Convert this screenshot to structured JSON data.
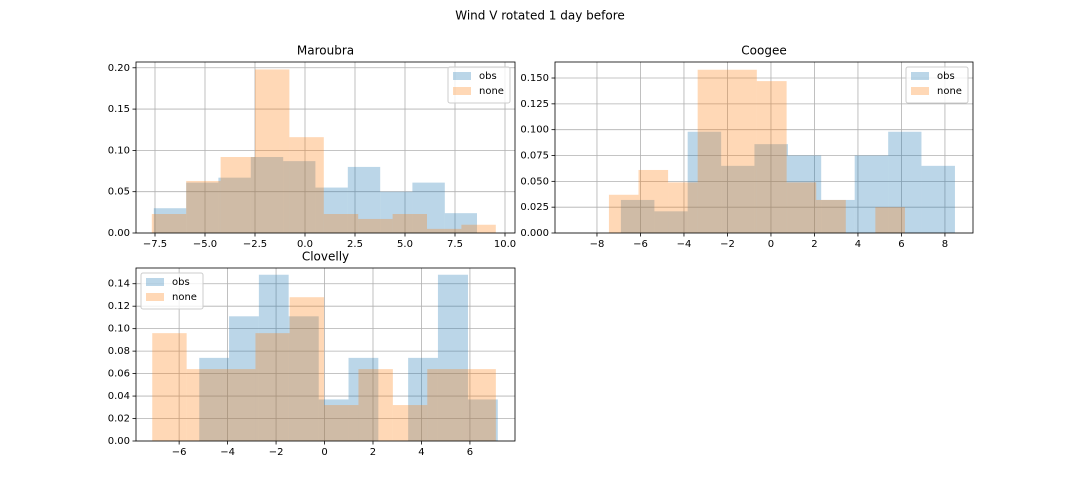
{
  "title": "Wind V rotated 1 day before",
  "chart_data": [
    {
      "type": "histogram",
      "title": "Maroubra",
      "grid": true,
      "legend": "upper right",
      "xlim": [
        -8.45,
        10.5
      ],
      "ylim": [
        0,
        0.207
      ],
      "xticks": [
        {
          "value": -7.5,
          "label": "−7.5"
        },
        {
          "value": -5,
          "label": "−5.0"
        },
        {
          "value": -2.5,
          "label": "−2.5"
        },
        {
          "value": 0,
          "label": "0.0"
        },
        {
          "value": 2.5,
          "label": "2.5"
        },
        {
          "value": 5,
          "label": "5.0"
        },
        {
          "value": 7.5,
          "label": "7.5"
        },
        {
          "value": 10,
          "label": "10.0"
        }
      ],
      "yticks": [
        {
          "value": 0,
          "label": "0.00"
        },
        {
          "value": 0.05,
          "label": "0.05"
        },
        {
          "value": 0.1,
          "label": "0.10"
        },
        {
          "value": 0.15,
          "label": "0.15"
        },
        {
          "value": 0.2,
          "label": "0.20"
        }
      ],
      "series": [
        {
          "name": "obs",
          "color": "#1f77b4",
          "bins": [
            -7.56,
            -5.94,
            -4.33,
            -2.71,
            -1.09,
            0.52,
            2.14,
            3.76,
            5.37,
            6.99,
            8.6
          ],
          "values": [
            0.03,
            0.061,
            0.067,
            0.092,
            0.087,
            0.055,
            0.08,
            0.05,
            0.061,
            0.024
          ]
        },
        {
          "name": "none",
          "color": "#ff7f0e",
          "bins": [
            -7.66,
            -5.94,
            -4.22,
            -2.5,
            -0.78,
            0.94,
            2.66,
            4.38,
            6.1,
            7.82,
            9.54
          ],
          "values": [
            0.023,
            0.063,
            0.092,
            0.198,
            0.116,
            0.023,
            0.017,
            0.023,
            0.005,
            0.01
          ]
        }
      ]
    },
    {
      "type": "histogram",
      "title": "Coogee",
      "grid": true,
      "legend": "upper right",
      "xlim": [
        -9.93,
        9.29
      ],
      "ylim": [
        0,
        0.1655
      ],
      "xticks": [
        {
          "value": -8,
          "label": "−8"
        },
        {
          "value": -6,
          "label": "−6"
        },
        {
          "value": -4,
          "label": "−4"
        },
        {
          "value": -2,
          "label": "−2"
        },
        0,
        2,
        4,
        6,
        8
      ],
      "yticks": [
        {
          "value": 0,
          "label": "0.000"
        },
        {
          "value": 0.025,
          "label": "0.025"
        },
        {
          "value": 0.05,
          "label": "0.050"
        },
        {
          "value": 0.075,
          "label": "0.075"
        },
        {
          "value": 0.1,
          "label": "0.100"
        },
        {
          "value": 0.125,
          "label": "0.125"
        },
        {
          "value": 0.15,
          "label": "0.150"
        }
      ],
      "series": [
        {
          "name": "obs",
          "color": "#1f77b4",
          "bins": [
            -6.9,
            -5.36,
            -3.83,
            -2.29,
            -0.76,
            0.78,
            2.31,
            3.85,
            5.39,
            6.92,
            8.46
          ],
          "values": [
            0.032,
            0.021,
            0.098,
            0.065,
            0.086,
            0.075,
            0.032,
            0.075,
            0.098,
            0.065
          ]
        },
        {
          "name": "none",
          "color": "#ff7f0e",
          "bins": [
            -7.45,
            -6.09,
            -4.73,
            -3.37,
            -2.01,
            -0.65,
            0.72,
            2.08,
            3.44,
            4.8,
            6.16
          ],
          "values": [
            0.037,
            0.061,
            0.049,
            0.158,
            0.158,
            0.147,
            0.049,
            0.032,
            0,
            0.025
          ]
        }
      ]
    },
    {
      "type": "histogram",
      "title": "Clovelly",
      "grid": true,
      "legend": "upper left",
      "xlim": [
        -7.78,
        7.86
      ],
      "ylim": [
        0,
        0.154
      ],
      "xticks": [
        {
          "value": -6,
          "label": "−6"
        },
        {
          "value": -4,
          "label": "−4"
        },
        {
          "value": -2,
          "label": "−2"
        },
        0,
        2,
        4,
        6
      ],
      "yticks": [
        {
          "value": 0,
          "label": "0.00"
        },
        {
          "value": 0.02,
          "label": "0.02"
        },
        {
          "value": 0.04,
          "label": "0.04"
        },
        {
          "value": 0.06,
          "label": "0.06"
        },
        {
          "value": 0.08,
          "label": "0.08"
        },
        {
          "value": 0.1,
          "label": "0.10"
        },
        {
          "value": 0.12,
          "label": "0.12"
        },
        {
          "value": 0.14,
          "label": "0.14"
        }
      ],
      "series": [
        {
          "name": "obs",
          "color": "#1f77b4",
          "bins": [
            -5.17,
            -3.94,
            -2.71,
            -1.48,
            -0.24,
            0.99,
            2.22,
            3.45,
            4.68,
            5.92,
            7.15
          ],
          "values": [
            0.074,
            0.111,
            0.148,
            0.111,
            0.037,
            0.074,
            0,
            0.074,
            0.148,
            0.037
          ]
        },
        {
          "name": "none",
          "color": "#ff7f0e",
          "bins": [
            -7.11,
            -5.69,
            -4.27,
            -2.85,
            -1.44,
            -0.02,
            1.4,
            2.82,
            4.24,
            5.65,
            7.07
          ],
          "values": [
            0.096,
            0.064,
            0.064,
            0.096,
            0.128,
            0.032,
            0.064,
            0.032,
            0.064,
            0.064
          ]
        }
      ]
    }
  ]
}
